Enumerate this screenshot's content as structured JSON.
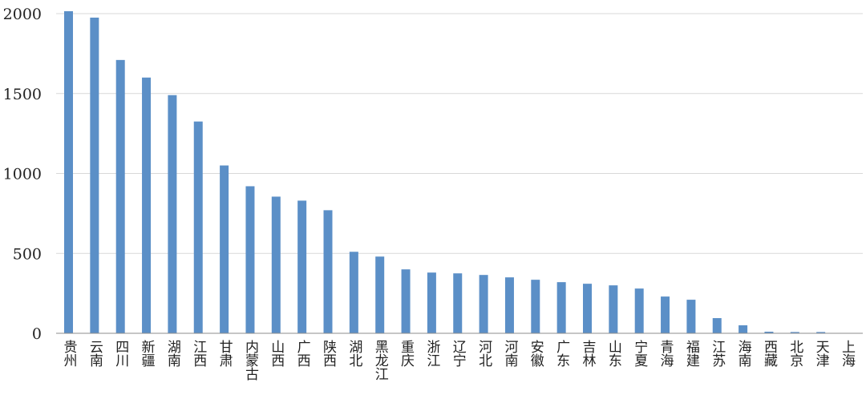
{
  "chart_data": {
    "type": "bar",
    "categories": [
      "贵州",
      "云南",
      "四川",
      "新疆",
      "湖南",
      "江西",
      "甘肃",
      "内蒙古",
      "山西",
      "广西",
      "陕西",
      "湖北",
      "黑龙江",
      "重庆",
      "浙江",
      "辽宁",
      "河北",
      "河南",
      "安徽",
      "广东",
      "吉林",
      "山东",
      "宁夏",
      "青海",
      "福建",
      "江苏",
      "海南",
      "西藏",
      "北京",
      "天津",
      "上海"
    ],
    "values": [
      2015,
      1975,
      1710,
      1600,
      1490,
      1325,
      1050,
      920,
      855,
      830,
      770,
      510,
      480,
      400,
      380,
      375,
      365,
      350,
      335,
      320,
      310,
      300,
      280,
      230,
      210,
      95,
      50,
      10,
      8,
      8,
      0
    ],
    "yticks": [
      0,
      500,
      1000,
      1500,
      2000
    ],
    "ylim": [
      0,
      2000
    ],
    "grid": true,
    "bar_color": "#5b8fc7",
    "grid_color": "#d9d9d9",
    "axis_color": "#8c8c8c"
  }
}
